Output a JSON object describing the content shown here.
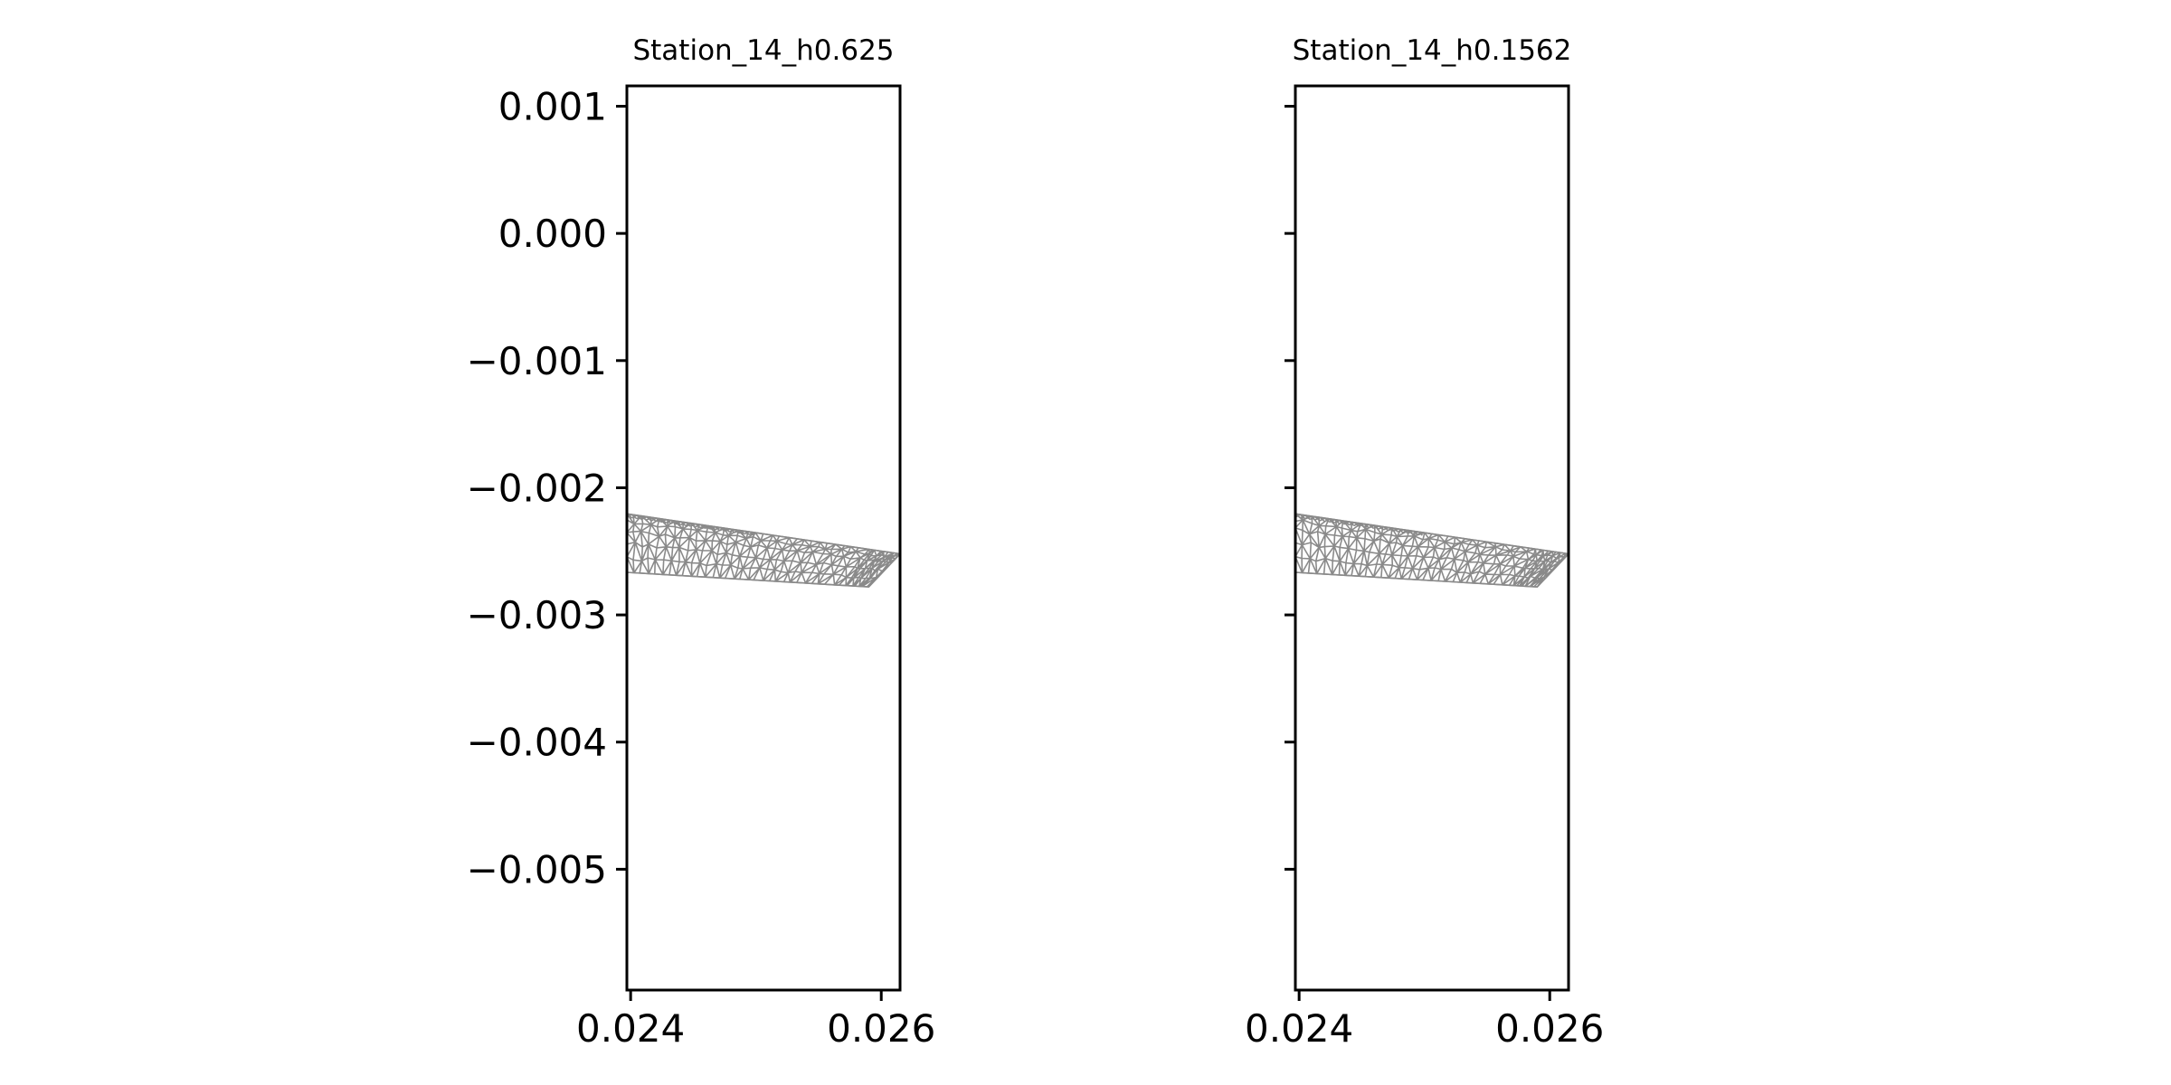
{
  "chart_data": [
    {
      "type": "mesh",
      "title": "Station_14_h0.625",
      "xlim": [
        0.02397,
        0.02615
      ],
      "ylim": [
        -0.00595,
        0.00116
      ],
      "xticks": [
        {
          "value": 0.024,
          "label": "0.024"
        },
        {
          "value": 0.026,
          "label": "0.026"
        }
      ],
      "yticks": [
        {
          "value": 0.001,
          "label": "0.001"
        },
        {
          "value": 0.0,
          "label": "0.000"
        },
        {
          "value": -0.001,
          "label": "−0.001"
        },
        {
          "value": -0.002,
          "label": "−0.002"
        },
        {
          "value": -0.003,
          "label": "−0.003"
        },
        {
          "value": -0.004,
          "label": "−0.004"
        },
        {
          "value": -0.005,
          "label": "−0.005"
        }
      ],
      "show_ytick_labels": true,
      "mesh_color": "#8a8a8a",
      "outline": [
        [
          0.02397,
          -0.002205
        ],
        [
          0.02615,
          -0.00252
        ],
        [
          0.0259,
          -0.00278
        ],
        [
          0.02397,
          -0.002665
        ]
      ]
    },
    {
      "type": "mesh",
      "title": "Station_14_h0.1562",
      "xlim": [
        0.02397,
        0.02615
      ],
      "ylim": [
        -0.00595,
        0.00116
      ],
      "xticks": [
        {
          "value": 0.024,
          "label": "0.024"
        },
        {
          "value": 0.026,
          "label": "0.026"
        }
      ],
      "yticks": [
        {
          "value": 0.001,
          "label": ""
        },
        {
          "value": 0.0,
          "label": ""
        },
        {
          "value": -0.001,
          "label": ""
        },
        {
          "value": -0.002,
          "label": ""
        },
        {
          "value": -0.003,
          "label": ""
        },
        {
          "value": -0.004,
          "label": ""
        },
        {
          "value": -0.005,
          "label": ""
        }
      ],
      "show_ytick_labels": false,
      "mesh_color": "#8a8a8a",
      "outline": [
        [
          0.02397,
          -0.002205
        ],
        [
          0.02615,
          -0.00252
        ],
        [
          0.0259,
          -0.00278
        ],
        [
          0.02397,
          -0.002665
        ]
      ]
    }
  ]
}
